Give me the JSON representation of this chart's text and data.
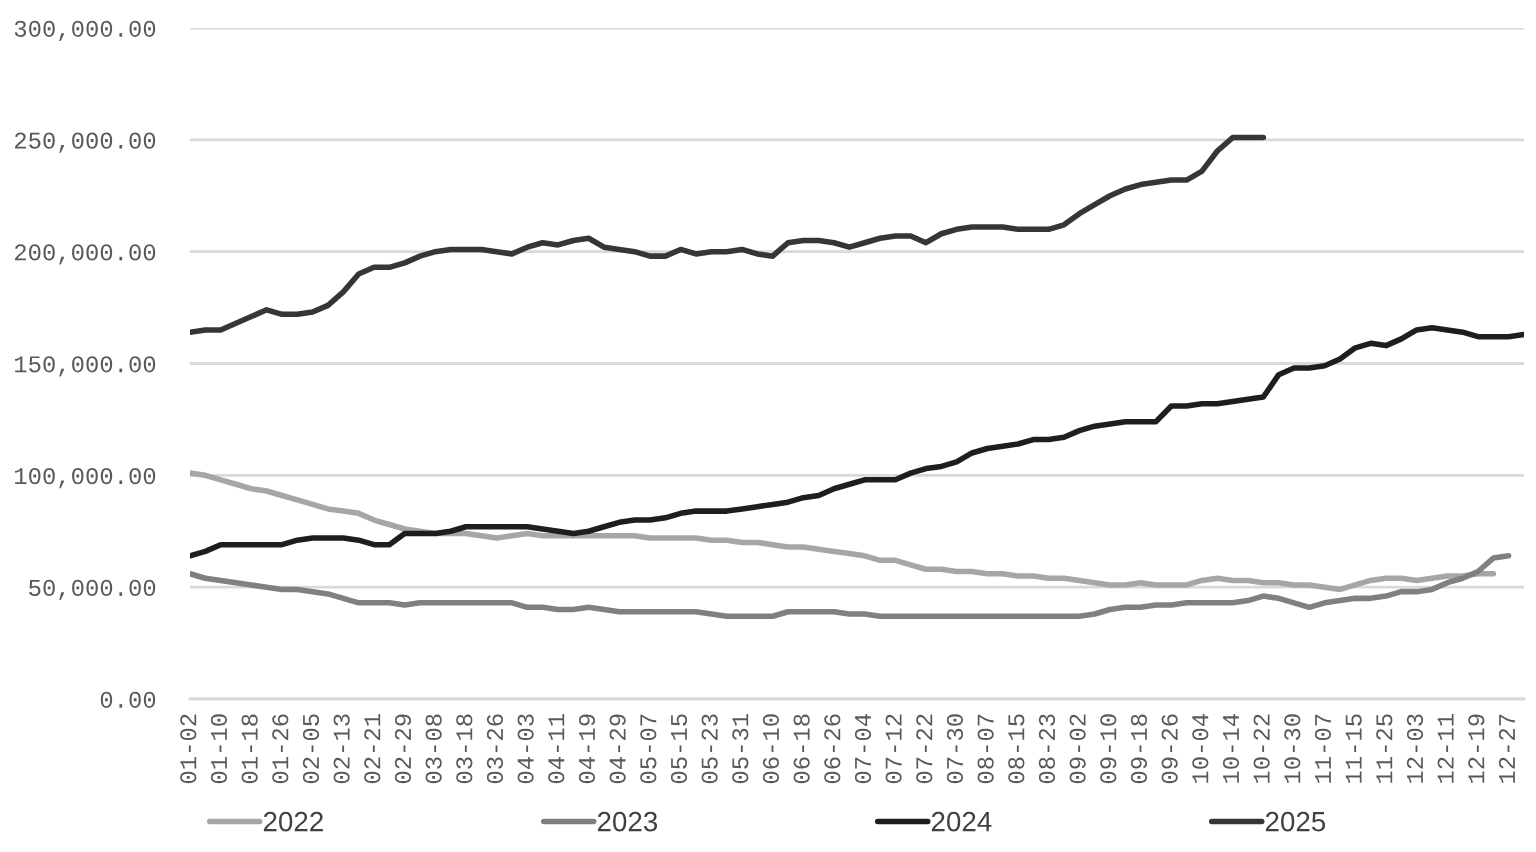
{
  "chart_data": {
    "type": "line",
    "categories": [
      "01-02",
      null,
      "01-10",
      null,
      "01-18",
      null,
      "01-26",
      null,
      "02-05",
      null,
      "02-13",
      null,
      "02-21",
      null,
      "02-29",
      null,
      "03-08",
      null,
      "03-18",
      null,
      "03-26",
      null,
      "04-03",
      null,
      "04-11",
      null,
      "04-19",
      null,
      "04-29",
      null,
      "05-07",
      null,
      "05-15",
      null,
      "05-23",
      null,
      "05-31",
      null,
      "06-10",
      null,
      "06-18",
      null,
      "06-26",
      null,
      "07-04",
      null,
      "07-12",
      null,
      "07-22",
      null,
      "07-30",
      null,
      "08-07",
      null,
      "08-15",
      null,
      "08-23",
      null,
      "09-02",
      null,
      "09-10",
      null,
      "09-18",
      null,
      "09-26",
      null,
      "10-04",
      null,
      "10-14",
      null,
      "10-22",
      null,
      "10-30",
      null,
      "11-07",
      null,
      "11-15",
      null,
      "11-25",
      null,
      "12-03",
      null,
      "12-11",
      null,
      "12-19",
      null,
      "12-27",
      null
    ],
    "series": [
      {
        "name": "2022",
        "color": "#a6a6a6",
        "values": [
          101000,
          100000,
          98000,
          96000,
          94000,
          93000,
          91000,
          89000,
          87000,
          85000,
          84000,
          83000,
          80000,
          78000,
          76000,
          75000,
          74000,
          74000,
          74000,
          73000,
          72000,
          73000,
          74000,
          73000,
          73000,
          73000,
          73000,
          73000,
          73000,
          73000,
          72000,
          72000,
          72000,
          72000,
          71000,
          71000,
          70000,
          70000,
          69000,
          68000,
          68000,
          67000,
          66000,
          65000,
          64000,
          62000,
          62000,
          60000,
          58000,
          58000,
          57000,
          57000,
          56000,
          56000,
          55000,
          55000,
          54000,
          54000,
          53000,
          52000,
          51000,
          51000,
          52000,
          51000,
          51000,
          51000,
          53000,
          54000,
          53000,
          53000,
          52000,
          52000,
          51000,
          51000,
          50000,
          49000,
          51000,
          53000,
          54000,
          54000,
          53000,
          54000,
          55000,
          55000,
          56000,
          56000,
          null,
          null
        ]
      },
      {
        "name": "2023",
        "color": "#808080",
        "values": [
          56000,
          54000,
          53000,
          52000,
          51000,
          50000,
          49000,
          49000,
          48000,
          47000,
          45000,
          43000,
          43000,
          43000,
          42000,
          43000,
          43000,
          43000,
          43000,
          43000,
          43000,
          43000,
          41000,
          41000,
          40000,
          40000,
          41000,
          40000,
          39000,
          39000,
          39000,
          39000,
          39000,
          39000,
          38000,
          37000,
          37000,
          37000,
          37000,
          39000,
          39000,
          39000,
          39000,
          38000,
          38000,
          37000,
          37000,
          37000,
          37000,
          37000,
          37000,
          37000,
          37000,
          37000,
          37000,
          37000,
          37000,
          37000,
          37000,
          38000,
          40000,
          41000,
          41000,
          42000,
          42000,
          43000,
          43000,
          43000,
          43000,
          44000,
          46000,
          45000,
          43000,
          41000,
          43000,
          44000,
          45000,
          45000,
          46000,
          48000,
          48000,
          49000,
          52000,
          54000,
          57000,
          63000,
          64000,
          null
        ]
      },
      {
        "name": "2024",
        "color": "#1e1e1e",
        "values": [
          64000,
          66000,
          69000,
          69000,
          69000,
          69000,
          69000,
          71000,
          72000,
          72000,
          72000,
          71000,
          69000,
          69000,
          74000,
          74000,
          74000,
          75000,
          77000,
          77000,
          77000,
          77000,
          77000,
          76000,
          75000,
          74000,
          75000,
          77000,
          79000,
          80000,
          80000,
          81000,
          83000,
          84000,
          84000,
          84000,
          85000,
          86000,
          87000,
          88000,
          90000,
          91000,
          94000,
          96000,
          98000,
          98000,
          98000,
          101000,
          103000,
          104000,
          106000,
          110000,
          112000,
          113000,
          114000,
          116000,
          116000,
          117000,
          120000,
          122000,
          123000,
          124000,
          124000,
          124000,
          131000,
          131000,
          132000,
          132000,
          133000,
          134000,
          135000,
          145000,
          148000,
          148000,
          149000,
          152000,
          157000,
          159000,
          158000,
          161000,
          165000,
          166000,
          165000,
          164000,
          162000,
          162000,
          162000,
          163000
        ]
      },
      {
        "name": "2025",
        "color": "#363636",
        "values": [
          164000,
          165000,
          165000,
          168000,
          171000,
          174000,
          172000,
          172000,
          173000,
          176000,
          182000,
          190000,
          193000,
          193000,
          195000,
          198000,
          200000,
          201000,
          201000,
          201000,
          200000,
          199000,
          202000,
          204000,
          203000,
          205000,
          206000,
          202000,
          201000,
          200000,
          198000,
          198000,
          201000,
          199000,
          200000,
          200000,
          201000,
          199000,
          198000,
          204000,
          205000,
          205000,
          204000,
          202000,
          204000,
          206000,
          207000,
          207000,
          204000,
          208000,
          210000,
          211000,
          211000,
          211000,
          210000,
          210000,
          210000,
          212000,
          217000,
          221000,
          225000,
          228000,
          230000,
          231000,
          232000,
          232000,
          236000,
          245000,
          251000,
          251000,
          251000,
          null,
          null,
          null,
          null,
          null,
          null,
          null,
          null,
          null,
          null,
          null,
          null,
          null,
          null,
          null,
          null,
          null
        ]
      }
    ],
    "ylim": [
      0,
      300000
    ],
    "yticks": [
      {
        "value": 0,
        "label": "0.00"
      },
      {
        "value": 50000,
        "label": "50,000.00"
      },
      {
        "value": 100000,
        "label": "100,000.00"
      },
      {
        "value": 150000,
        "label": "150,000.00"
      },
      {
        "value": 200000,
        "label": "200,000.00"
      },
      {
        "value": 250000,
        "label": "250,000.00"
      },
      {
        "value": 300000,
        "label": "300,000.00"
      }
    ],
    "grid": "y",
    "legend": "bottom",
    "line_style": "solid"
  }
}
